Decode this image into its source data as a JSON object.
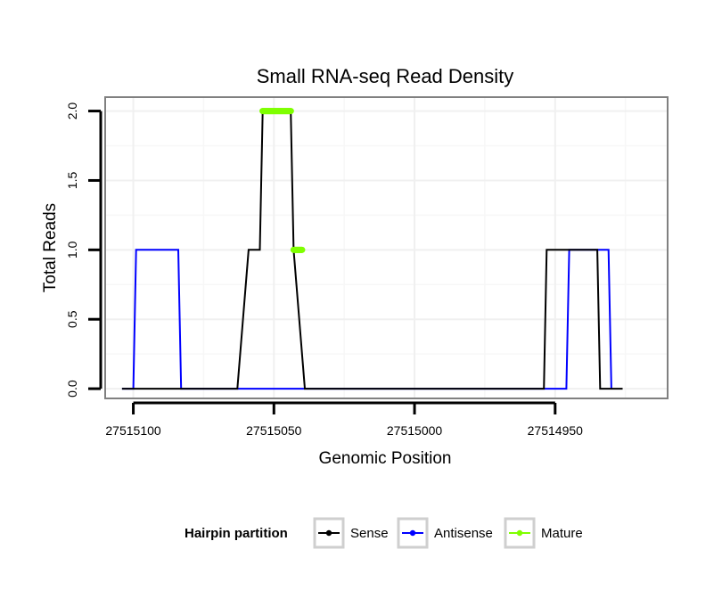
{
  "chart_data": {
    "type": "line",
    "title": "Small RNA-seq Read Density",
    "xlabel": "Genomic Position",
    "ylabel": "Total Reads",
    "x_reversed": true,
    "xlim": [
      27515110,
      27514910
    ],
    "ylim": [
      -0.07,
      2.1
    ],
    "x_ticks": [
      27515100,
      27515050,
      27515000,
      27514950
    ],
    "x_tick_labels": [
      "27515100",
      "27515050",
      "27515000",
      "27514950"
    ],
    "y_ticks": [
      0,
      0.5,
      1,
      1.5,
      2
    ],
    "y_tick_labels": [
      "0.0",
      "0.5",
      "1.0",
      "1.5",
      "2.0"
    ],
    "grid": true,
    "legend": {
      "title": "Hairpin partition",
      "placement": "bottom",
      "entries": [
        "Sense",
        "Antisense",
        "Mature"
      ]
    },
    "series": [
      {
        "name": "Sense",
        "color": "#000000",
        "style": "line",
        "x": [
          27515104,
          27515063,
          27515059,
          27515055,
          27515054,
          27515044,
          27515043,
          27515039,
          27514954,
          27514953,
          27514945,
          27514944,
          27514935,
          27514934,
          27514926
        ],
        "y": [
          0,
          0,
          1,
          1,
          2,
          2,
          1,
          0,
          0,
          1,
          1,
          1,
          1,
          0,
          0
        ]
      },
      {
        "name": "Antisense",
        "color": "#0000ff",
        "style": "line",
        "x": [
          27515104,
          27515100,
          27515099,
          27515084,
          27515083,
          27514946,
          27514945,
          27514931,
          27514930
        ],
        "y": [
          0,
          0,
          1,
          1,
          0,
          0,
          1,
          1,
          0
        ]
      },
      {
        "name": "Mature",
        "color": "#7fff00",
        "style": "segment",
        "segments": [
          {
            "x": [
              27515054,
              27515044
            ],
            "y": [
              2,
              2
            ]
          },
          {
            "x": [
              27515043,
              27515040
            ],
            "y": [
              1,
              1
            ]
          }
        ]
      }
    ]
  }
}
